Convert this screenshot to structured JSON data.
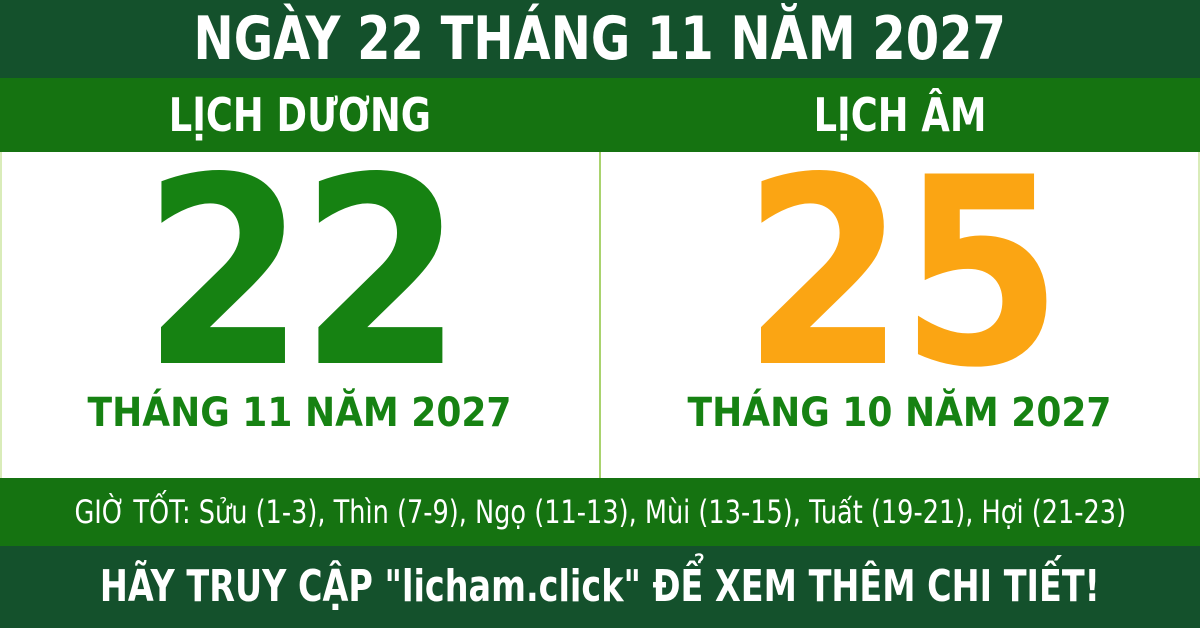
{
  "header": {
    "title": "NGÀY 22 THÁNG 11 NĂM 2027"
  },
  "calendars": {
    "solar": {
      "label": "LỊCH DƯƠNG",
      "day": "22",
      "month_year": "THÁNG 11 NĂM 2027"
    },
    "lunar": {
      "label": "LỊCH ÂM",
      "day": "25",
      "month_year": "THÁNG 10 NĂM 2027"
    }
  },
  "good_hours": {
    "text": "GIỜ TỐT: Sửu (1-3), Thìn (7-9), Ngọ (11-13), Mùi (13-15), Tuất (19-21), Hợi (21-23)"
  },
  "footer": {
    "text": "HÃY TRUY CẬP \"licham.click\" ĐỂ XEM THÊM CHI TIẾT!"
  },
  "colors": {
    "dark_green": "#14512C",
    "band_green": "#157311",
    "day_green": "#168212",
    "day_orange": "#FBA513",
    "divider_green": "#A9D36E"
  }
}
